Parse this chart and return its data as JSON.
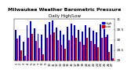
{
  "title": "Milwaukee Weather Barometric Pressure",
  "subtitle": "Daily High/Low",
  "bar_color_high": "#0000dd",
  "bar_color_low": "#dd0000",
  "ylim": [
    29.0,
    31.0
  ],
  "yticks": [
    29.0,
    29.5,
    30.0,
    30.5,
    31.0
  ],
  "ytick_labels": [
    "29",
    "29.5",
    "30",
    "30.5",
    "31"
  ],
  "x_labels": [
    "1",
    "2",
    "3",
    "4",
    "5",
    "6",
    "7",
    "8",
    "9",
    "10",
    "11",
    "12",
    "13",
    "14",
    "15",
    "16",
    "17",
    "18",
    "19",
    "20",
    "21",
    "22",
    "23",
    "24",
    "25",
    "26",
    "27"
  ],
  "highs": [
    30.5,
    30.2,
    29.9,
    30.7,
    30.9,
    30.55,
    30.3,
    30.25,
    30.75,
    30.85,
    30.95,
    30.6,
    30.45,
    30.25,
    30.65,
    30.8,
    30.7,
    30.5,
    30.4,
    30.7,
    30.6,
    30.45,
    30.35,
    30.75,
    30.8,
    30.25,
    29.8
  ],
  "lows": [
    30.05,
    29.5,
    29.2,
    30.1,
    30.3,
    29.95,
    29.6,
    29.3,
    30.1,
    30.25,
    30.35,
    30.0,
    29.75,
    29.55,
    30.0,
    30.2,
    30.1,
    29.9,
    29.75,
    30.1,
    29.95,
    29.8,
    29.65,
    30.1,
    30.15,
    29.4,
    29.1
  ],
  "background_color": "#ffffff",
  "title_fontsize": 4.5,
  "axis_fontsize": 3.0,
  "legend_fontsize": 3.0
}
